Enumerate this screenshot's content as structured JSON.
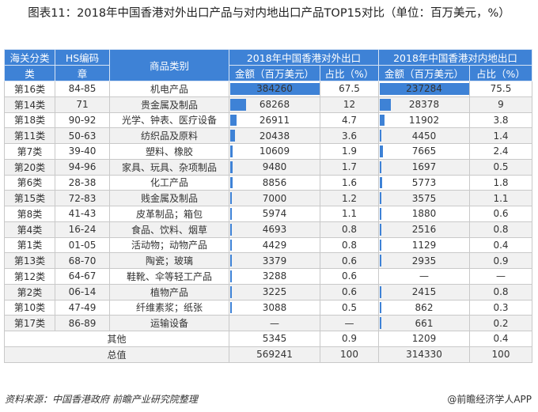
{
  "title": "图表11：2018年中国香港对外出口产品与对内地出口产品TOP15对比（单位：百万美元，%）",
  "table": {
    "headers": {
      "customs_class_top": "海关分类",
      "customs_class_bottom": "类",
      "hs_code_top": "HS编码",
      "hs_code_bottom": "章",
      "category": "商品类别",
      "group_external": "2018年中国香港对外出口",
      "group_mainland": "2018年中国香港对内地出口",
      "amount": "金额（百万美元）",
      "share": "占比（%）"
    },
    "rows": [
      {
        "cls": "第16类",
        "hs": "84-85",
        "cat": "机电产品",
        "ext_amt": "384260",
        "ext_pct": "67.5",
        "ml_amt": "237284",
        "ml_pct": "75.5"
      },
      {
        "cls": "第14类",
        "hs": "71",
        "cat": "贵金属及制品",
        "ext_amt": "68268",
        "ext_pct": "12",
        "ml_amt": "28378",
        "ml_pct": "9"
      },
      {
        "cls": "第18类",
        "hs": "90-92",
        "cat": "光学、钟表、医疗设备",
        "ext_amt": "26911",
        "ext_pct": "4.7",
        "ml_amt": "11902",
        "ml_pct": "3.8"
      },
      {
        "cls": "第11类",
        "hs": "50-63",
        "cat": "纺织品及原料",
        "ext_amt": "20438",
        "ext_pct": "3.6",
        "ml_amt": "4450",
        "ml_pct": "1.4"
      },
      {
        "cls": "第7类",
        "hs": "39-40",
        "cat": "塑料、橡胶",
        "ext_amt": "10609",
        "ext_pct": "1.9",
        "ml_amt": "7665",
        "ml_pct": "2.4"
      },
      {
        "cls": "第20类",
        "hs": "94-96",
        "cat": "家具、玩具、杂项制品",
        "ext_amt": "9480",
        "ext_pct": "1.7",
        "ml_amt": "1697",
        "ml_pct": "0.5"
      },
      {
        "cls": "第6类",
        "hs": "28-38",
        "cat": "化工产品",
        "ext_amt": "8856",
        "ext_pct": "1.6",
        "ml_amt": "5773",
        "ml_pct": "1.8"
      },
      {
        "cls": "第15类",
        "hs": "72-83",
        "cat": "贱金属及制品",
        "ext_amt": "7000",
        "ext_pct": "1.2",
        "ml_amt": "3575",
        "ml_pct": "1.1"
      },
      {
        "cls": "第8类",
        "hs": "41-43",
        "cat": "皮革制品；箱包",
        "ext_amt": "5974",
        "ext_pct": "1.1",
        "ml_amt": "1880",
        "ml_pct": "0.6"
      },
      {
        "cls": "第4类",
        "hs": "16-24",
        "cat": "食品、饮料、烟草",
        "ext_amt": "4693",
        "ext_pct": "0.8",
        "ml_amt": "2516",
        "ml_pct": "0.8"
      },
      {
        "cls": "第1类",
        "hs": "01-05",
        "cat": "活动物；动物产品",
        "ext_amt": "4429",
        "ext_pct": "0.8",
        "ml_amt": "1129",
        "ml_pct": "0.4"
      },
      {
        "cls": "第13类",
        "hs": "68-70",
        "cat": "陶瓷；玻璃",
        "ext_amt": "3379",
        "ext_pct": "0.6",
        "ml_amt": "2935",
        "ml_pct": "0.9"
      },
      {
        "cls": "第12类",
        "hs": "64-67",
        "cat": "鞋靴、伞等轻工产品",
        "ext_amt": "3288",
        "ext_pct": "0.6",
        "ml_amt": "—",
        "ml_pct": "—"
      },
      {
        "cls": "第2类",
        "hs": "06-14",
        "cat": "植物产品",
        "ext_amt": "3225",
        "ext_pct": "0.6",
        "ml_amt": "2415",
        "ml_pct": "0.8"
      },
      {
        "cls": "第10类",
        "hs": "47-49",
        "cat": "纤维素浆；纸张",
        "ext_amt": "3088",
        "ext_pct": "0.5",
        "ml_amt": "862",
        "ml_pct": "0.3"
      },
      {
        "cls": "第17类",
        "hs": "86-89",
        "cat": "运输设备",
        "ext_amt": "—",
        "ext_pct": "—",
        "ml_amt": "661",
        "ml_pct": "0.2"
      }
    ],
    "other": {
      "label": "其他",
      "ext_amt": "5345",
      "ext_pct": "0.9",
      "ml_amt": "1209",
      "ml_pct": "0.4"
    },
    "total": {
      "label": "总值",
      "ext_amt": "569241",
      "ext_pct": "100",
      "ml_amt": "314330",
      "ml_pct": "100"
    }
  },
  "footer": {
    "source": "资料来源：中国香港政府 前瞻产业研究院整理",
    "brand": "@前瞻经济学人APP"
  },
  "colors": {
    "header_bg": "#3e82d6",
    "bar": "#3e82d6",
    "stripe": "#f1f1f1"
  }
}
